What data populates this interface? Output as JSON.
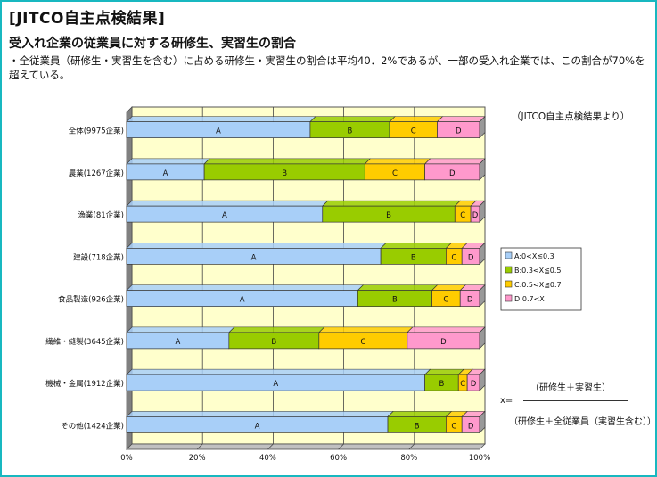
{
  "header": {
    "title": "[JITCO自主点検結果]",
    "subtitle": "受入れ企業の従業員に対する研修生、実習生の割合",
    "description": "・全従業員（研修生・実習生を含む）に占める研修生・実習生の割合は平均40．2%であるが、一部の受入れ企業では、この割合が70%を超えている。"
  },
  "source_note": "（JITCO自主点検結果より）",
  "formula": {
    "x_label": "x=",
    "numerator": "（研修生＋実習生）",
    "denominator": "（研修生＋全従業員（実習生含む））"
  },
  "chart_data": {
    "type": "bar",
    "orientation": "horizontal",
    "stacked": true,
    "categories": [
      "全体(9975企業)",
      "農業(1267企業)",
      "漁業(81企業)",
      "建設(718企業)",
      "食品製造(926企業)",
      "繊維・縫製(3645企業)",
      "機械・金属(1912企業)",
      "その他(1424企業)"
    ],
    "series": [
      {
        "name": "A:0<X≦0.3",
        "label": "A",
        "color": "#a8cff8",
        "values": [
          52,
          22,
          55.5,
          72,
          65.5,
          29,
          84.5,
          74
        ]
      },
      {
        "name": "B:0.3<X≦0.5",
        "label": "B",
        "color": "#99cc00",
        "values": [
          22.5,
          45.5,
          37.5,
          18.5,
          21,
          25.5,
          9.5,
          16.5
        ]
      },
      {
        "name": "C:0.5<X≦0.7",
        "label": "C",
        "color": "#ffcc00",
        "values": [
          13.5,
          17,
          4.5,
          4.5,
          8,
          25,
          2.5,
          4.5
        ]
      },
      {
        "name": "D:0.7<X",
        "label": "D",
        "color": "#ff99cc",
        "values": [
          12,
          15.5,
          2.5,
          5,
          5.5,
          20.5,
          3.5,
          5
        ]
      }
    ],
    "x_ticks": [
      "0%",
      "20%",
      "40%",
      "60%",
      "80%",
      "100%"
    ],
    "xlim": [
      0,
      100
    ],
    "grid": true,
    "legend_position": "right"
  }
}
